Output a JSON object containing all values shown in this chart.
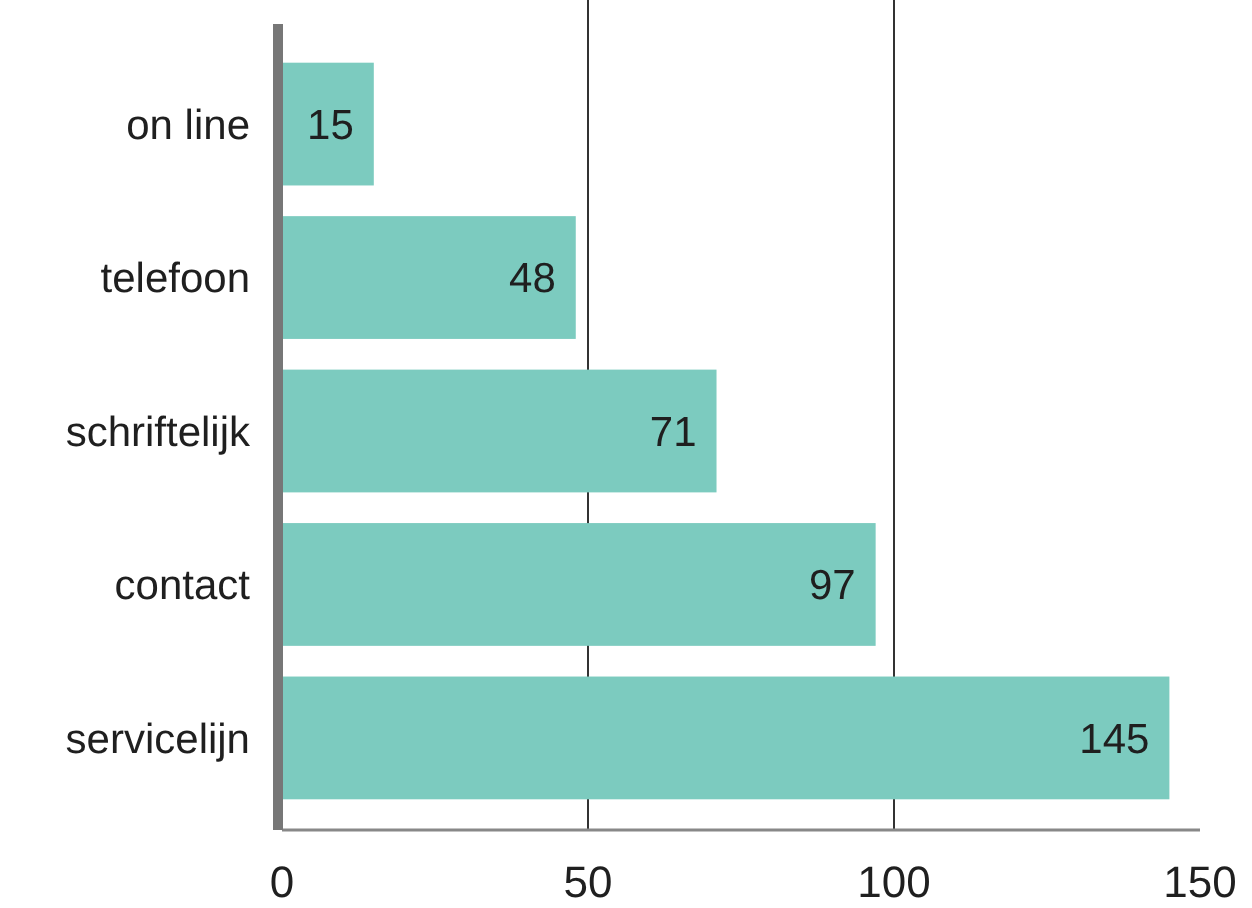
{
  "chart_data": {
    "type": "bar",
    "orientation": "horizontal",
    "categories": [
      "on line",
      "telefoon",
      "schriftelijk",
      "contact",
      "servicelijn"
    ],
    "values": [
      15,
      48,
      71,
      97,
      145
    ],
    "color": "#7ccbbf",
    "xlim": [
      0,
      150
    ],
    "xticks": [
      0,
      50,
      100,
      150
    ],
    "grid": "x",
    "data_labels": true
  }
}
